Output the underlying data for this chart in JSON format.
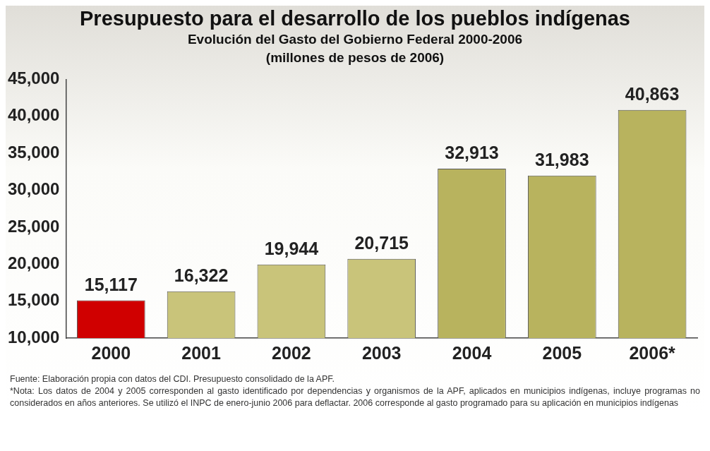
{
  "chart_data": {
    "type": "bar",
    "title": "Presupuesto para el desarrollo de los pueblos indígenas",
    "subtitle": "Evolución del Gasto del Gobierno Federal 2000-2006\n(millones de pesos de 2006)",
    "categories": [
      "2000",
      "2001",
      "2002",
      "2003",
      "2004",
      "2005",
      "2006*"
    ],
    "values": [
      15117,
      16322,
      19944,
      20715,
      32913,
      31983,
      40863
    ],
    "colors": [
      "#d00000",
      "#c9c47a",
      "#c9c47a",
      "#c9c47a",
      "#b8b35e",
      "#b8b35e",
      "#b8b35e"
    ],
    "value_labels": [
      "15,117",
      "16,322",
      "19,944",
      "20,715",
      "32,913",
      "31,983",
      "40,863"
    ],
    "ylim": [
      10000,
      45000
    ],
    "yticks": [
      {
        "value": 10000,
        "label": "10,000"
      },
      {
        "value": 15000,
        "label": "15,000"
      },
      {
        "value": 20000,
        "label": "20,000"
      },
      {
        "value": 25000,
        "label": "25,000"
      },
      {
        "value": 30000,
        "label": "30,000"
      },
      {
        "value": 35000,
        "label": "35,000"
      },
      {
        "value": 40000,
        "label": "40,000"
      },
      {
        "value": 45000,
        "label": "45,000"
      }
    ],
    "grid": false,
    "legend": false,
    "annotations": [
      "Fuente: Elaboración propia con datos del CDI. Presupuesto consolidado de la APF.",
      "*Nota:  Los datos de 2004 y 2005 corresponden al gasto identificado por dependencias y organismos de la APF, aplicados  en municipios indígenas, incluye programas no considerados en años anteriores. Se utilizó el INPC de enero-junio 2006 para deflactar. 2006 corresponde al gasto programado para su aplicación en municipios indígenas"
    ]
  }
}
